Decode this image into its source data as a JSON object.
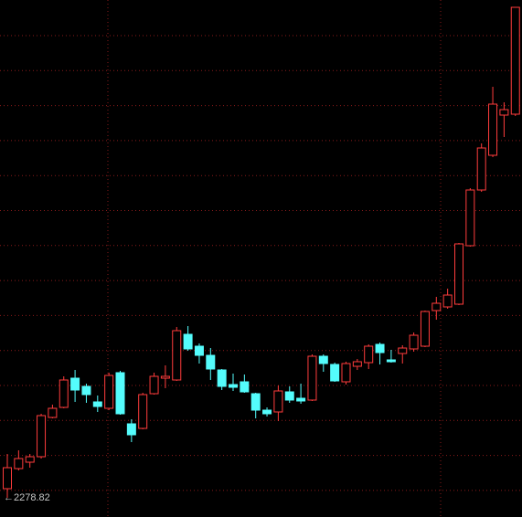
{
  "chart_data": {
    "type": "candlestick",
    "up_color": "#ff3c3c",
    "down_color": "#54fcfc",
    "label_color": "#c8c8c8",
    "grid_color": "#8a1a1a",
    "ylim": [
      2216,
      3914
    ],
    "min_label": "←2278.82",
    "open": [
      2309,
      2375,
      2396,
      2414,
      2543,
      2576,
      2672,
      2645,
      2594,
      2573,
      2690,
      2522,
      2507,
      2621,
      2672,
      2666,
      2816,
      2777,
      2747,
      2699,
      2651,
      2660,
      2621,
      2567,
      2561,
      2627,
      2606,
      2600,
      2744,
      2717,
      2660,
      2711,
      2723,
      2783,
      2732,
      2753,
      2768,
      2777,
      2894,
      2906,
      2915,
      3107,
      3290,
      3404,
      3536,
      3539
    ],
    "high": [
      2423,
      2435,
      2423,
      2555,
      2585,
      2678,
      2699,
      2654,
      2615,
      2690,
      2696,
      2537,
      2624,
      2690,
      2714,
      2840,
      2843,
      2786,
      2771,
      2702,
      2687,
      2684,
      2624,
      2576,
      2648,
      2645,
      2654,
      2750,
      2750,
      2723,
      2726,
      2735,
      2783,
      2789,
      2765,
      2780,
      2822,
      2894,
      2939,
      2966,
      3116,
      3296,
      3443,
      3629,
      3578,
      3890
    ],
    "low": [
      2278.82,
      2369,
      2378,
      2408,
      2540,
      2573,
      2594,
      2591,
      2561,
      2567,
      2552,
      2462,
      2504,
      2618,
      2639,
      2663,
      2762,
      2720,
      2666,
      2633,
      2630,
      2624,
      2540,
      2546,
      2531,
      2591,
      2588,
      2597,
      2693,
      2660,
      2651,
      2699,
      2702,
      2717,
      2723,
      2720,
      2759,
      2774,
      2864,
      2900,
      2912,
      3104,
      3284,
      3398,
      3464,
      3533
    ],
    "close": [
      2378,
      2408,
      2414,
      2549,
      2573,
      2666,
      2633,
      2618,
      2579,
      2681,
      2555,
      2486,
      2618,
      2678,
      2678,
      2828,
      2768,
      2747,
      2702,
      2645,
      2642,
      2627,
      2567,
      2555,
      2630,
      2600,
      2597,
      2744,
      2720,
      2663,
      2720,
      2726,
      2777,
      2756,
      2726,
      2771,
      2813,
      2891,
      2918,
      2945,
      3113,
      3290,
      3428,
      3572,
      3554,
      3890
    ]
  }
}
